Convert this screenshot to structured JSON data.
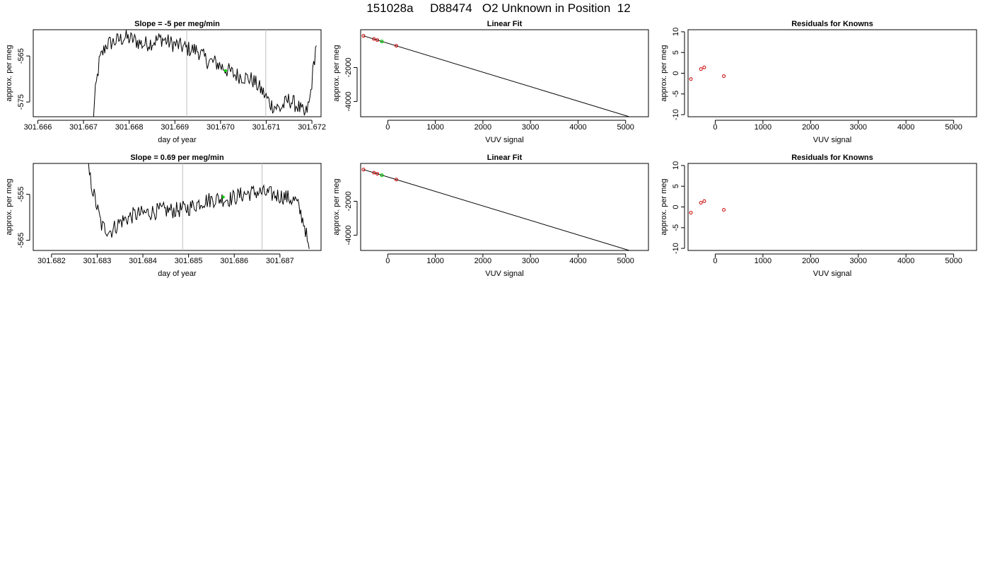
{
  "figure": {
    "title": "151028a     D88474   O2 Unknown in Position  12"
  },
  "chart_data": [
    {
      "type": "line",
      "title": "Slope =  -5  per meg/min",
      "xlabel": "day of year",
      "ylabel": "approx. per meg",
      "xlim": [
        301.6659,
        301.6722
      ],
      "ylim": [
        -578.2,
        -559.3
      ],
      "xticks": [
        301.666,
        301.667,
        301.668,
        301.669,
        301.67,
        301.671,
        301.672
      ],
      "xtick_labels": [
        "301.666",
        "301.667",
        "301.668",
        "301.669",
        "301.670",
        "301.671",
        "301.672"
      ],
      "yticks": [
        -565,
        -575
      ],
      "ytick_labels": [
        "-565",
        "-575"
      ],
      "vlines": [
        301.66926,
        301.67099
      ],
      "highlight_point": {
        "x": 301.67011,
        "y": -568.2
      },
      "x_start": 301.6672,
      "x_end": 301.6721,
      "keypoints": [
        [
          301.6672,
          -580
        ],
        [
          301.66727,
          -572
        ],
        [
          301.66735,
          -566
        ],
        [
          301.6675,
          -562.5
        ],
        [
          301.6677,
          -561.8
        ],
        [
          301.6679,
          -561
        ],
        [
          301.6681,
          -561.5
        ],
        [
          301.6683,
          -562.5
        ],
        [
          301.6685,
          -562
        ],
        [
          301.6687,
          -561.2
        ],
        [
          301.6689,
          -562.2
        ],
        [
          301.6691,
          -562.8
        ],
        [
          301.6693,
          -563.5
        ],
        [
          301.6695,
          -563.8
        ],
        [
          301.6697,
          -566
        ],
        [
          301.6699,
          -566.5
        ],
        [
          301.6701,
          -567.8
        ],
        [
          301.6703,
          -569
        ],
        [
          301.6705,
          -569.5
        ],
        [
          301.6707,
          -570.2
        ],
        [
          301.6709,
          -572.5
        ],
        [
          301.6711,
          -575.5
        ],
        [
          301.6713,
          -576.5
        ],
        [
          301.6715,
          -574.5
        ],
        [
          301.6717,
          -576
        ],
        [
          301.67185,
          -578
        ],
        [
          301.67195,
          -575
        ],
        [
          301.67205,
          -566
        ],
        [
          301.67215,
          -558
        ]
      ]
    },
    {
      "type": "scatter",
      "title": "Linear Fit",
      "xlabel": "VUV signal",
      "ylabel": "approx. per meg",
      "xlim": [
        -570,
        5480
      ],
      "ylim": [
        -4900,
        230
      ],
      "xticks": [
        0,
        1000,
        2000,
        3000,
        4000,
        5000
      ],
      "xtick_labels": [
        "0",
        "1000",
        "2000",
        "3000",
        "4000",
        "5000"
      ],
      "yticks": [
        -2000,
        -4000
      ],
      "ytick_labels": [
        "-2000",
        "-4000"
      ],
      "fit_line": {
        "slope": -0.8533,
        "intercept": -567,
        "x_from": -510,
        "x_to": 5260
      },
      "known_points": [
        [
          -510,
          -132
        ],
        [
          -290,
          -317
        ],
        [
          -220,
          -381
        ],
        [
          180,
          -717
        ]
      ],
      "unknown_point": {
        "x": -125,
        "y": -460
      }
    },
    {
      "type": "scatter",
      "title": "Residuals for Knowns",
      "xlabel": "VUV signal",
      "ylabel": "approx. per meg",
      "xlim": [
        -570,
        5480
      ],
      "ylim": [
        -10.5,
        10.5
      ],
      "xticks": [
        0,
        1000,
        2000,
        3000,
        4000,
        5000
      ],
      "xtick_labels": [
        "0",
        "1000",
        "2000",
        "3000",
        "4000",
        "5000"
      ],
      "yticks": [
        -10,
        -5,
        0,
        5,
        10
      ],
      "ytick_labels": [
        "-10",
        "-5",
        "0",
        "5",
        "10"
      ],
      "points": [
        [
          -510,
          -1.4
        ],
        [
          -300,
          1.0
        ],
        [
          -230,
          1.4
        ],
        [
          180,
          -0.7
        ]
      ]
    },
    {
      "type": "line",
      "title": "Slope =  0.69  per meg/min",
      "xlabel": "day of year",
      "ylabel": "approx. per meg",
      "xlim": [
        301.6816,
        301.6879
      ],
      "ylim": [
        -567.2,
        -548.3
      ],
      "xticks": [
        301.682,
        301.683,
        301.684,
        301.685,
        301.686,
        301.687
      ],
      "xtick_labels": [
        "301.682",
        "301.683",
        "301.684",
        "301.685",
        "301.686",
        "301.687"
      ],
      "yticks": [
        -555,
        -565
      ],
      "ytick_labels": [
        "-555",
        "-565"
      ],
      "vlines": [
        301.68487,
        301.68661
      ],
      "highlight_point": {
        "x": 301.68576,
        "y": -555.6
      },
      "x_start": 301.68277,
      "x_end": 301.68764,
      "keypoints": [
        [
          301.68277,
          -548
        ],
        [
          301.6829,
          -554
        ],
        [
          301.683,
          -558
        ],
        [
          301.6831,
          -562
        ],
        [
          301.6833,
          -563
        ],
        [
          301.6835,
          -561
        ],
        [
          301.6838,
          -559.5
        ],
        [
          301.6841,
          -559
        ],
        [
          301.6844,
          -558.5
        ],
        [
          301.6847,
          -558.5
        ],
        [
          301.685,
          -558
        ],
        [
          301.6853,
          -556.5
        ],
        [
          301.6856,
          -556
        ],
        [
          301.6859,
          -556
        ],
        [
          301.6862,
          -555
        ],
        [
          301.6865,
          -554.5
        ],
        [
          301.6868,
          -555
        ],
        [
          301.6871,
          -555.5
        ],
        [
          301.68735,
          -556.5
        ],
        [
          301.68745,
          -559
        ],
        [
          301.68755,
          -562
        ],
        [
          301.68764,
          -568
        ]
      ]
    },
    {
      "type": "scatter",
      "title": "Linear Fit",
      "xlabel": "VUV signal",
      "ylabel": "approx. per meg",
      "xlim": [
        -570,
        5480
      ],
      "ylim": [
        -4900,
        230
      ],
      "xticks": [
        0,
        1000,
        2000,
        3000,
        4000,
        5000
      ],
      "xtick_labels": [
        "0",
        "1000",
        "2000",
        "3000",
        "4000",
        "5000"
      ],
      "yticks": [
        -2000,
        -4000
      ],
      "ytick_labels": [
        "-2000",
        "-4000"
      ],
      "fit_line": {
        "slope": -0.8533,
        "intercept": -567,
        "x_from": -510,
        "x_to": 5260
      },
      "known_points": [
        [
          -510,
          -132
        ],
        [
          -290,
          -317
        ],
        [
          -220,
          -381
        ],
        [
          180,
          -717
        ]
      ],
      "unknown_point": {
        "x": -125,
        "y": -460
      }
    },
    {
      "type": "scatter",
      "title": "Residuals for Knowns",
      "xlabel": "VUV signal",
      "ylabel": "approx. per meg",
      "xlim": [
        -570,
        5480
      ],
      "ylim": [
        -10.5,
        10.5
      ],
      "xticks": [
        0,
        1000,
        2000,
        3000,
        4000,
        5000
      ],
      "xtick_labels": [
        "0",
        "1000",
        "2000",
        "3000",
        "4000",
        "5000"
      ],
      "yticks": [
        -10,
        -5,
        0,
        5,
        10
      ],
      "ytick_labels": [
        "-10",
        "-5",
        "0",
        "5",
        "10"
      ],
      "points": [
        [
          -510,
          -1.4
        ],
        [
          -300,
          1.0
        ],
        [
          -230,
          1.4
        ],
        [
          180,
          -0.7
        ]
      ]
    }
  ],
  "colors": {
    "line": "#000000",
    "vline": "#bebebe",
    "known_point": "#cc0000",
    "unknown_point": "#00cc00",
    "frame": "#000000"
  }
}
